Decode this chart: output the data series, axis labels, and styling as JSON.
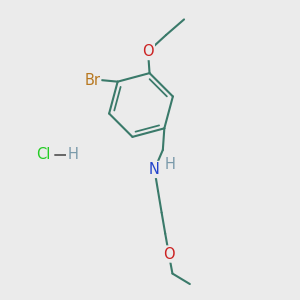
{
  "bg_color": "#ebebeb",
  "bond_color": "#3a7a6a",
  "bond_width": 1.5,
  "atom_colors": {
    "Br": "#b87820",
    "O": "#cc2222",
    "N": "#2244cc",
    "Cl": "#22cc22",
    "H_NH": "#7a9aaa",
    "H_HCl": "#7a9aaa"
  },
  "font_size_atom": 10.5,
  "font_size_H": 10.5
}
